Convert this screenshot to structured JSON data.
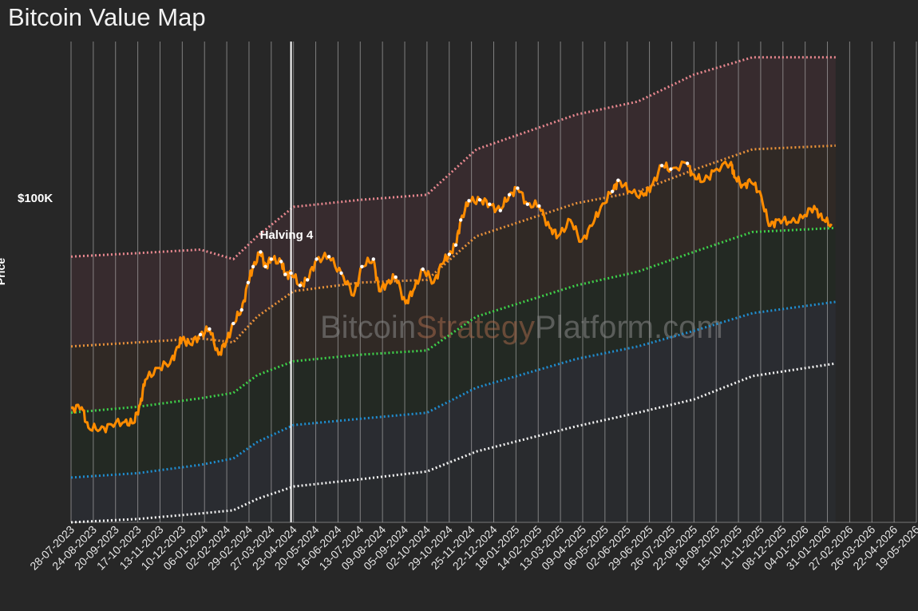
{
  "title": "Bitcoin Value Map",
  "chart_data": {
    "type": "line",
    "title": "Bitcoin Value Map",
    "ylabel": "Price",
    "y_scale": "log",
    "ylim": [
      15000,
      250000
    ],
    "xlim": [
      "2023-07-28",
      "2026-05-19"
    ],
    "grid": true,
    "y_ticks": [
      {
        "value": 100000,
        "label": "$100K"
      }
    ],
    "x_ticks": [
      "28-07-2023",
      "24-08-2023",
      "20-09-2023",
      "17-10-2023",
      "13-11-2023",
      "10-12-2023",
      "06-01-2024",
      "02-02-2024",
      "29-02-2024",
      "27-03-2024",
      "23-04-2024",
      "20-05-2024",
      "16-06-2024",
      "13-07-2024",
      "09-08-2024",
      "05-09-2024",
      "02-10-2024",
      "29-10-2024",
      "25-11-2024",
      "22-12-2024",
      "18-01-2025",
      "14-02-2025",
      "13-03-2025",
      "09-04-2025",
      "06-05-2025",
      "02-06-2025",
      "29-06-2025",
      "26-07-2025",
      "22-08-2025",
      "18-09-2025",
      "15-10-2025",
      "11-11-2025",
      "08-12-2025",
      "04-01-2026",
      "31-01-2026",
      "27-02-2026",
      "26-03-2026",
      "22-04-2026",
      "19-05-2026"
    ],
    "annotations": [
      {
        "label": "Halving 4",
        "date": "2024-04-20"
      }
    ],
    "watermark": [
      "Bitcoin",
      "Strategy",
      "Platform.com"
    ],
    "colors": {
      "price": "#ff8c00",
      "top_band": "#e8888f",
      "upper_band": "#e8913a",
      "fair_band": "#3ed04a",
      "lower_band": "#1f8ed0",
      "floor_band": "#f2f2f2",
      "watermark_main": "#888888",
      "watermark_accent": "#a4684a"
    },
    "bands": [
      {
        "key": "top",
        "color": "#e8888f",
        "dates": [
          "2023-07-28",
          "2023-10-17",
          "2024-01-01",
          "2024-02-10",
          "2024-03-10",
          "2024-04-23",
          "2024-07-13",
          "2024-10-02",
          "2024-12-01",
          "2025-04-01",
          "2025-06-15",
          "2025-08-22",
          "2025-11-01",
          "2026-02-10"
        ],
        "values": [
          71000,
          72500,
          74000,
          70000,
          80000,
          95000,
          99000,
          102000,
          133000,
          163000,
          176000,
          206000,
          228000,
          228000
        ]
      },
      {
        "key": "upper",
        "color": "#e8913a",
        "dates": [
          "2023-07-28",
          "2023-10-17",
          "2024-01-01",
          "2024-02-10",
          "2024-03-10",
          "2024-04-23",
          "2024-07-13",
          "2024-10-02",
          "2024-12-01",
          "2025-04-01",
          "2025-06-15",
          "2025-08-22",
          "2025-11-01",
          "2026-02-10"
        ],
        "values": [
          42000,
          43000,
          44000,
          43000,
          50000,
          58000,
          61000,
          62000,
          80000,
          97000,
          104000,
          118000,
          133000,
          136000
        ]
      },
      {
        "key": "fair",
        "color": "#3ed04a",
        "dates": [
          "2023-07-28",
          "2023-10-17",
          "2024-01-01",
          "2024-02-10",
          "2024-03-10",
          "2024-04-23",
          "2024-07-13",
          "2024-10-02",
          "2024-12-01",
          "2025-04-01",
          "2025-06-15",
          "2025-08-22",
          "2025-11-01",
          "2026-02-10"
        ],
        "values": [
          28500,
          29500,
          31000,
          32000,
          35500,
          38500,
          40000,
          41000,
          50000,
          60000,
          65000,
          73000,
          82000,
          84000
        ]
      },
      {
        "key": "lower",
        "color": "#1f8ed0",
        "dates": [
          "2023-07-28",
          "2023-10-17",
          "2024-01-01",
          "2024-02-10",
          "2024-03-10",
          "2024-04-23",
          "2024-07-13",
          "2024-10-02",
          "2024-12-01",
          "2025-04-01",
          "2025-06-15",
          "2025-08-22",
          "2025-11-01",
          "2026-02-10"
        ],
        "values": [
          19500,
          20000,
          21000,
          21800,
          24000,
          26500,
          27500,
          28500,
          33000,
          39000,
          42000,
          46000,
          51000,
          54500
        ]
      },
      {
        "key": "floor",
        "color": "#f2f2f2",
        "dates": [
          "2023-07-28",
          "2023-10-17",
          "2024-01-01",
          "2024-02-10",
          "2024-03-10",
          "2024-04-23",
          "2024-07-13",
          "2024-10-02",
          "2024-12-01",
          "2025-04-01",
          "2025-06-15",
          "2025-08-22",
          "2025-11-01",
          "2026-02-10"
        ],
        "values": [
          15000,
          15300,
          15800,
          16100,
          17200,
          18500,
          19300,
          20200,
          22700,
          26300,
          28500,
          30800,
          35300,
          38000
        ]
      }
    ],
    "series": [
      {
        "name": "Price",
        "color": "#ff8c00",
        "dates": [
          "2023-07-28",
          "2023-08-10",
          "2023-08-18",
          "2023-09-01",
          "2023-09-15",
          "2023-10-01",
          "2023-10-12",
          "2023-10-20",
          "2023-10-26",
          "2023-11-10",
          "2023-11-25",
          "2023-12-05",
          "2023-12-10",
          "2023-12-20",
          "2024-01-01",
          "2024-01-12",
          "2024-01-23",
          "2024-02-01",
          "2024-02-10",
          "2024-02-20",
          "2024-02-28",
          "2024-03-05",
          "2024-03-14",
          "2024-03-20",
          "2024-03-27",
          "2024-04-08",
          "2024-04-13",
          "2024-04-20",
          "2024-05-01",
          "2024-05-10",
          "2024-05-21",
          "2024-06-05",
          "2024-06-20",
          "2024-07-05",
          "2024-07-15",
          "2024-07-29",
          "2024-08-05",
          "2024-08-15",
          "2024-08-25",
          "2024-09-06",
          "2024-09-15",
          "2024-09-27",
          "2024-10-10",
          "2024-10-20",
          "2024-10-29",
          "2024-11-06",
          "2024-11-12",
          "2024-11-22",
          "2024-12-05",
          "2024-12-17",
          "2024-12-30",
          "2025-01-10",
          "2025-01-20",
          "2025-02-01",
          "2025-02-15",
          "2025-02-28",
          "2025-03-10",
          "2025-03-25",
          "2025-04-07",
          "2025-04-20",
          "2025-05-01",
          "2025-05-15",
          "2025-05-22",
          "2025-06-05",
          "2025-06-22",
          "2025-07-01",
          "2025-07-14",
          "2025-07-25",
          "2025-08-14",
          "2025-08-20",
          "2025-09-01",
          "2025-09-15",
          "2025-10-06",
          "2025-10-10",
          "2025-10-20",
          "2025-10-30",
          "2025-11-10",
          "2025-11-21",
          "2025-12-01",
          "2025-12-15",
          "2026-01-01",
          "2026-01-15",
          "2026-01-25",
          "2026-02-05"
        ],
        "values": [
          29300,
          29400,
          26100,
          25800,
          26600,
          27000,
          26800,
          30000,
          34500,
          37000,
          38000,
          42000,
          44000,
          42500,
          45000,
          46500,
          40000,
          43000,
          48000,
          52000,
          61000,
          67000,
          73000,
          67000,
          70000,
          69000,
          64000,
          64500,
          60000,
          62000,
          70000,
          71000,
          64500,
          56500,
          67000,
          70000,
          58000,
          61000,
          63000,
          54000,
          58000,
          66000,
          61000,
          68000,
          72000,
          76000,
          88000,
          98500,
          99000,
          96500,
          93000,
          102000,
          106000,
          96500,
          95500,
          84000,
          80000,
          88000,
          77500,
          85000,
          95000,
          104000,
          111000,
          104000,
          101500,
          107000,
          121000,
          118500,
          122500,
          115000,
          110000,
          117000,
          123500,
          113000,
          108000,
          110000,
          104000,
          85000,
          88000,
          87000,
          89000,
          95500,
          88000,
          86000
        ]
      }
    ]
  }
}
